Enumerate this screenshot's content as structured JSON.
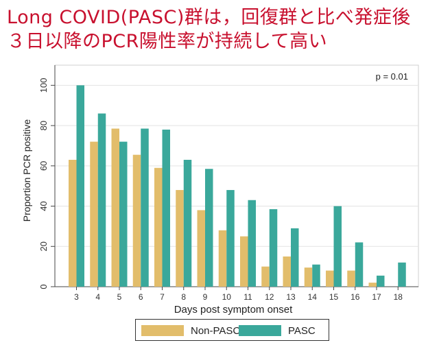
{
  "header": {
    "title_line1": "Long COVID(PASC)群は，回復群と比べ発症後",
    "title_line2": "３日以降のPCR陽性率が持続して高い"
  },
  "colors": {
    "non_pasc": "#e2bd6b",
    "pasc": "#3aa89b",
    "title": "#c8102e"
  },
  "chart_data": {
    "type": "bar",
    "title": "",
    "xlabel": "Days post symptom onset",
    "ylabel": "Proportion PCR positive",
    "ylim": [
      0,
      110
    ],
    "yticks": [
      0,
      20,
      40,
      60,
      80,
      100
    ],
    "categories": [
      "3",
      "4",
      "5",
      "6",
      "7",
      "8",
      "9",
      "10",
      "11",
      "12",
      "13",
      "14",
      "15",
      "16",
      "17",
      "18"
    ],
    "series": [
      {
        "name": "Non-PASC",
        "values": [
          63,
          72,
          78.5,
          65.5,
          59,
          48,
          38,
          28,
          25,
          10,
          15,
          9.5,
          8,
          8,
          2,
          0
        ]
      },
      {
        "name": "PASC",
        "values": [
          100,
          86,
          72,
          78.5,
          78,
          63,
          58.5,
          48,
          43,
          38.5,
          29,
          11,
          40,
          22,
          5.5,
          12
        ]
      }
    ],
    "annotation": "p = 0.01",
    "grid": true,
    "legend": "bottom"
  }
}
